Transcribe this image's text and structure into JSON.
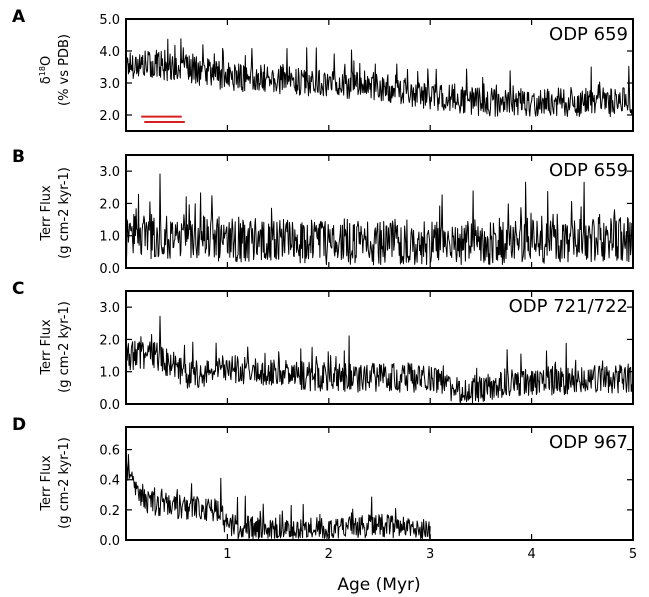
{
  "chart_data": [
    {
      "panel": "A",
      "type": "line",
      "site": "ODP 659",
      "ylabel_main": "δ",
      "ylabel_sup": "18",
      "ylabel_tail": "O",
      "ylabel_line2": "(% vs PDB)",
      "ylim": [
        1.5,
        5.0
      ],
      "yticks": [
        "2.0",
        "3.0",
        "4.0",
        "5.0"
      ],
      "ytick_values": [
        2.0,
        3.0,
        4.0,
        5.0
      ],
      "xlim": [
        0,
        5
      ],
      "x_start": 0.0,
      "x_end": 5.0,
      "series": [
        {
          "values_profile": [
            [
              0,
              3.6
            ],
            [
              0.5,
              3.5
            ],
            [
              1,
              3.2
            ],
            [
              1.5,
              3.1
            ],
            [
              2,
              3.0
            ],
            [
              2.5,
              2.9
            ],
            [
              3,
              2.6
            ],
            [
              3.5,
              2.4
            ],
            [
              4,
              2.4
            ],
            [
              4.5,
              2.4
            ],
            [
              5,
              2.4
            ]
          ],
          "amplitude": 0.45
        }
      ],
      "markers": [
        {
          "x": [
            0.15,
            0.55
          ],
          "y": 1.95,
          "color": "#d62020"
        },
        {
          "x": [
            0.18,
            0.58
          ],
          "y": 1.78,
          "color": "#d62020"
        }
      ]
    },
    {
      "panel": "B",
      "type": "line",
      "site": "ODP 659",
      "ylabel_line1": "Terr Flux",
      "ylabel_line2": "(g cm-2 kyr-1)",
      "ylim": [
        0.0,
        3.5
      ],
      "yticks": [
        "0.0",
        "1.0",
        "2.0",
        "3.0"
      ],
      "ytick_values": [
        0.0,
        1.0,
        2.0,
        3.0
      ],
      "xlim": [
        0,
        5
      ],
      "x_start": 0.0,
      "x_end": 5.0,
      "series": [
        {
          "values_profile": [
            [
              0,
              1.0
            ],
            [
              1,
              0.9
            ],
            [
              2,
              0.8
            ],
            [
              3,
              0.8
            ],
            [
              4,
              0.8
            ],
            [
              5,
              0.9
            ]
          ],
          "amplitude": 0.7
        }
      ]
    },
    {
      "panel": "C",
      "type": "line",
      "site": "ODP 721/722",
      "ylabel_line1": "Terr Flux",
      "ylabel_line2": "(g cm-2 kyr-1)",
      "ylim": [
        0.0,
        3.5
      ],
      "yticks": [
        "0.0",
        "1.0",
        "2.0",
        "3.0"
      ],
      "ytick_values": [
        0.0,
        1.0,
        2.0,
        3.0
      ],
      "xlim": [
        0,
        5
      ],
      "x_start": 0.0,
      "x_end": 5.0,
      "series": [
        {
          "values_profile": [
            [
              0,
              1.5
            ],
            [
              0.3,
              1.5
            ],
            [
              0.6,
              0.9
            ],
            [
              1,
              1.1
            ],
            [
              2,
              0.8
            ],
            [
              3,
              0.8
            ],
            [
              3.2,
              0.4
            ],
            [
              4,
              0.7
            ],
            [
              5,
              0.8
            ]
          ],
          "amplitude": 0.45
        }
      ]
    },
    {
      "panel": "D",
      "type": "line",
      "site": "ODP 967",
      "ylabel_line1": "Terr Flux",
      "ylabel_line2": "(g cm-2 kyr-1)",
      "ylim": [
        0.0,
        0.75
      ],
      "yticks": [
        "0.0",
        "0.2",
        "0.4",
        "0.6"
      ],
      "ytick_values": [
        0.0,
        0.2,
        0.4,
        0.6
      ],
      "xlim": [
        0,
        5
      ],
      "x_start": 0.0,
      "x_end": 3.0,
      "series": [
        {
          "values_profile": [
            [
              0,
              0.45
            ],
            [
              0.2,
              0.25
            ],
            [
              0.5,
              0.22
            ],
            [
              0.9,
              0.2
            ],
            [
              1,
              0.1
            ],
            [
              1.5,
              0.05
            ],
            [
              2,
              0.08
            ],
            [
              2.5,
              0.1
            ],
            [
              3,
              0.05
            ]
          ],
          "amplitude": 0.08
        }
      ]
    }
  ],
  "xaxis": {
    "xticks": [
      "1",
      "2",
      "3",
      "4",
      "5"
    ],
    "xtick_values": [
      1,
      2,
      3,
      4,
      5
    ],
    "xlabel": "Age (Myr)"
  },
  "letters": [
    "A",
    "B",
    "C",
    "D"
  ]
}
